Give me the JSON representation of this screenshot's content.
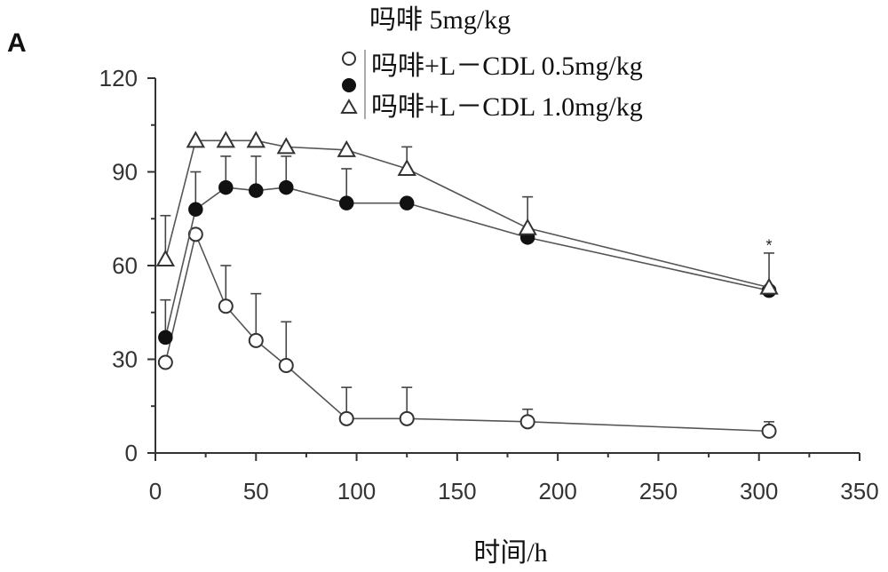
{
  "chart_data": {
    "type": "line",
    "panel_label": "A",
    "title": "吗啡  5mg/kg",
    "xlabel": "时间/h",
    "ylabel": "",
    "xlim": [
      0,
      350
    ],
    "ylim": [
      0,
      120
    ],
    "xticks": [
      0,
      50,
      100,
      150,
      200,
      250,
      300,
      350
    ],
    "yticks": [
      0,
      30,
      60,
      90,
      120
    ],
    "legend_placement": "top-center",
    "grid": false,
    "series": [
      {
        "name": "吗啡+L－CDL 0.5mg/kg",
        "marker": "circle-open",
        "x": [
          5,
          20,
          35,
          50,
          65,
          95,
          125,
          185,
          305
        ],
        "y": [
          29,
          70,
          47,
          36,
          28,
          11,
          11,
          10,
          7
        ],
        "err": [
          0,
          0,
          13,
          15,
          14,
          10,
          10,
          4,
          3
        ]
      },
      {
        "name": "吗啡+L－CDL 1.0mg/kg",
        "marker": "circle-filled",
        "x": [
          5,
          20,
          35,
          50,
          65,
          95,
          125,
          185,
          305
        ],
        "y": [
          37,
          78,
          85,
          84,
          85,
          80,
          80,
          69,
          52
        ],
        "err": [
          12,
          12,
          10,
          11,
          10,
          11,
          0,
          0,
          0
        ]
      },
      {
        "name": "",
        "marker": "triangle-open",
        "x": [
          5,
          20,
          35,
          50,
          65,
          95,
          125,
          185,
          305
        ],
        "y": [
          62,
          100,
          100,
          100,
          98,
          97,
          91,
          72,
          53
        ],
        "err": [
          14,
          0,
          0,
          0,
          0,
          0,
          7,
          10,
          11
        ]
      }
    ],
    "annotations": [
      {
        "text": "*",
        "x": 305,
        "y": 67
      }
    ]
  }
}
